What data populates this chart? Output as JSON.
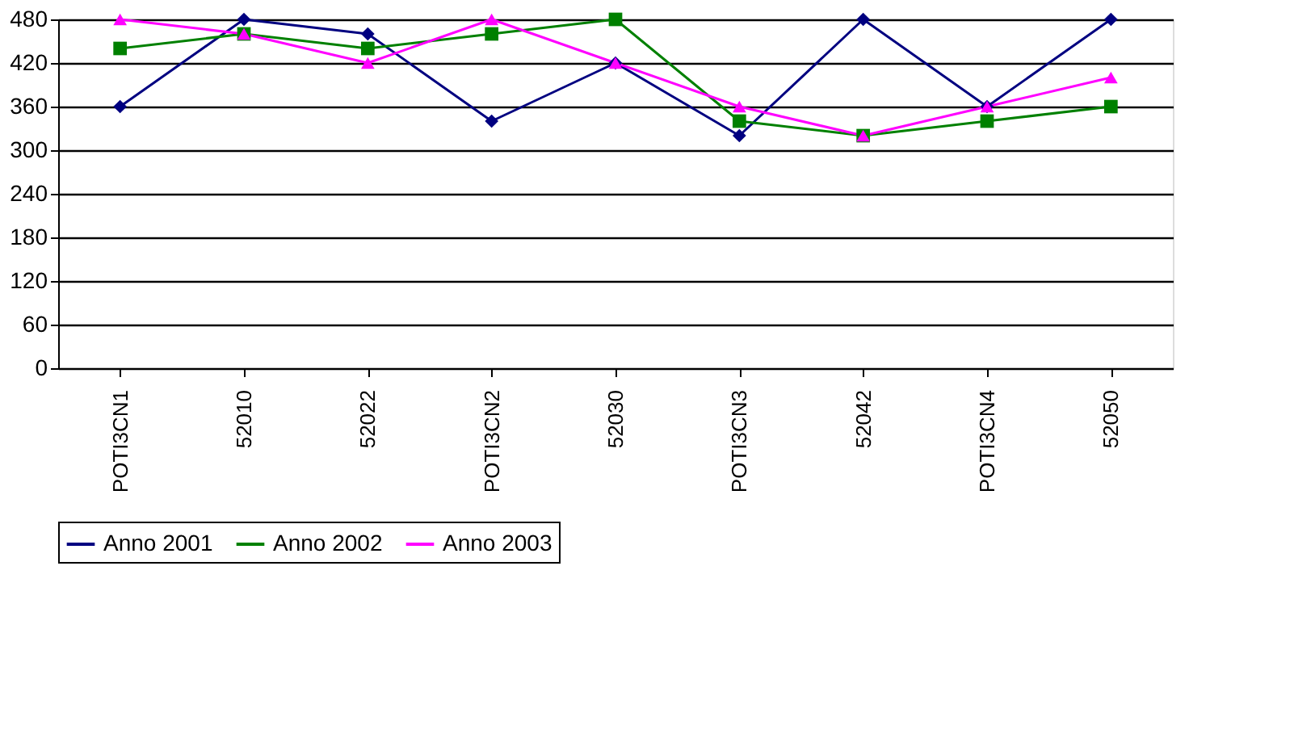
{
  "chart_data": {
    "type": "line",
    "categories": [
      "POTI3CN1",
      "52010",
      "52022",
      "POTI3CN2",
      "52030",
      "POTI3CN3",
      "52042",
      "POTI3CN4",
      "52050"
    ],
    "series": [
      {
        "name": "Anno 2001",
        "color": "#000080",
        "marker": "diamond",
        "values": [
          360,
          480,
          460,
          340,
          420,
          320,
          480,
          360,
          480
        ]
      },
      {
        "name": "Anno 2002",
        "color": "#008000",
        "marker": "square",
        "values": [
          440,
          460,
          440,
          460,
          480,
          340,
          320,
          340,
          360
        ]
      },
      {
        "name": "Anno 2003",
        "color": "#ff00ff",
        "marker": "triangle",
        "values": [
          480,
          460,
          420,
          480,
          420,
          360,
          320,
          360,
          400
        ]
      }
    ],
    "ylim": [
      0,
      480
    ],
    "yticks": [
      0,
      60,
      120,
      180,
      240,
      300,
      360,
      420,
      480
    ],
    "grid": "y",
    "legend": "bottom",
    "line_style": "solid"
  }
}
